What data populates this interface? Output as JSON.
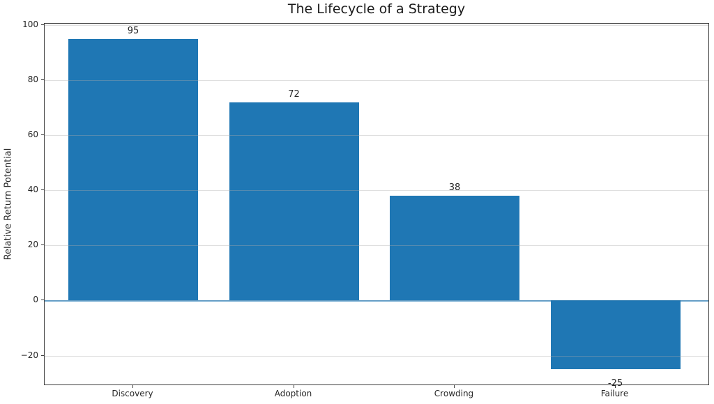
{
  "figure": {
    "title": "The Lifecycle of a Strategy",
    "ylabel": "Relative Return Potential"
  },
  "chart_data": {
    "type": "bar",
    "title": "The Lifecycle of a Strategy",
    "xlabel": "",
    "ylabel": "Relative Return Potential",
    "categories": [
      "Discovery",
      "Adoption",
      "Crowding",
      "Failure"
    ],
    "values": [
      95,
      72,
      38,
      -25
    ],
    "bar_labels": [
      "95",
      "72",
      "38",
      "-25"
    ],
    "yticks": [
      100,
      80,
      60,
      40,
      20,
      0,
      -20
    ],
    "ytick_labels": [
      "100",
      "80",
      "60",
      "40",
      "20",
      "0",
      "−20"
    ],
    "ylim": [
      -31,
      100.5
    ],
    "zero_line": 0,
    "grid": "horizontal",
    "legend": "none",
    "colors": {
      "bar": "#1f77b4",
      "zero_line": "#5a9bc9",
      "grid": "#e4e4e4",
      "spine": "#3c3c3c",
      "text": "#262626"
    }
  }
}
